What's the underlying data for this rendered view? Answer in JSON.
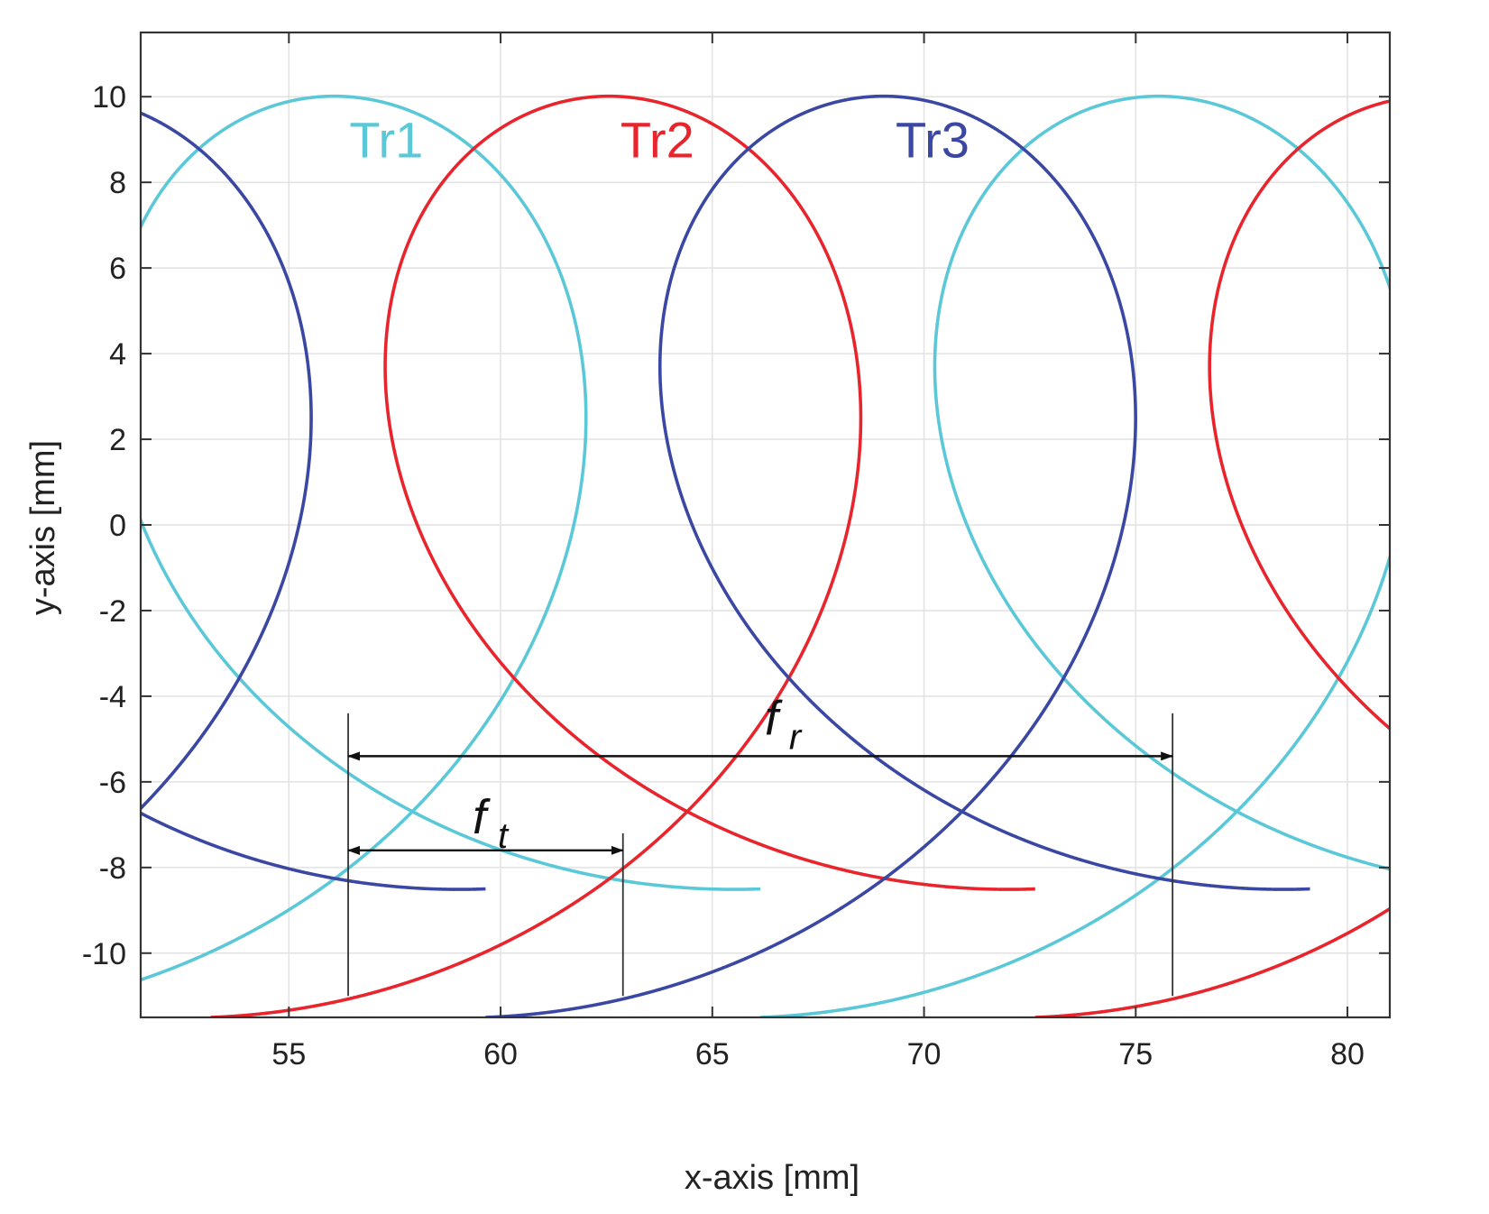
{
  "chart_data": {
    "type": "line",
    "title": "",
    "xlabel": "x-axis [mm]",
    "ylabel": "y-axis [mm]",
    "xlim": [
      51.5,
      81
    ],
    "ylim": [
      -11.5,
      11.5
    ],
    "xticks": [
      55,
      60,
      65,
      70,
      75,
      80
    ],
    "yticks": [
      10,
      8,
      6,
      4,
      2,
      0,
      -2,
      -4,
      -6,
      -8,
      -10
    ],
    "grid": true,
    "legend": "inline labels above curves",
    "trochoid": {
      "radius": 10,
      "center_y": 0,
      "feed_per_revolution": 19.47,
      "tooth_pitch": 6.49,
      "wrap_offset": 3
    },
    "series": [
      {
        "name": "Tr1",
        "color": "#5bc8d8",
        "label_x": 57.3,
        "label_y": 9.0,
        "apex_x": [
          56.4,
          75.87
        ]
      },
      {
        "name": "Tr2",
        "color": "#e8252c",
        "label_x": 63.7,
        "label_y": 9.0,
        "apex_x": [
          62.89,
          82.36
        ]
      },
      {
        "name": "Tr3",
        "color": "#3a47a3",
        "label_x": 70.2,
        "label_y": 9.0,
        "apex_x": [
          49.91,
          69.38
        ]
      }
    ],
    "annotations": [
      {
        "label": "f",
        "subscript": "r",
        "x_from": 56.4,
        "x_to": 75.87,
        "y": -5.4,
        "text_x": 66.4,
        "text_y": -4.9
      },
      {
        "label": "f",
        "subscript": "t",
        "x_from": 56.4,
        "x_to": 62.89,
        "y": -7.6,
        "text_x": 59.5,
        "text_y": -7.2
      }
    ],
    "vertical_markers": [
      {
        "x": 56.4,
        "y_from": -11.0,
        "y_to": -4.4
      },
      {
        "x": 62.89,
        "y_from": -11.0,
        "y_to": -7.2
      },
      {
        "x": 75.87,
        "y_from": -11.0,
        "y_to": -4.4
      }
    ]
  }
}
